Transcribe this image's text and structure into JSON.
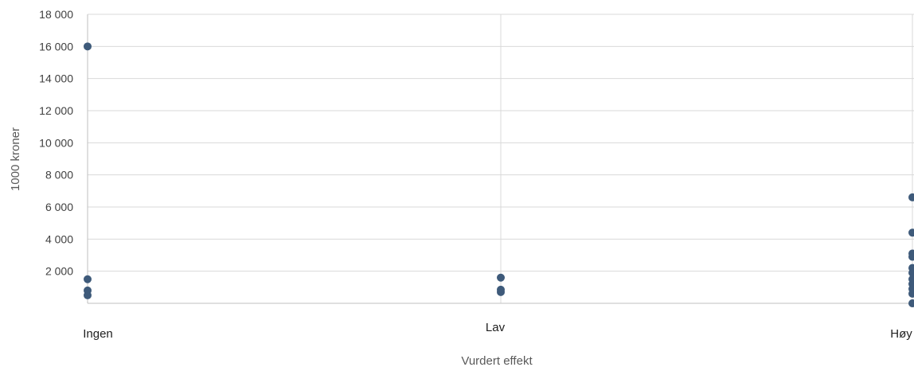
{
  "chart_data": {
    "type": "scatter",
    "title": "",
    "xlabel": "Vurdert effekt",
    "ylabel": "1000 kroner",
    "categories": [
      "Ingen",
      "Lav",
      "Høy"
    ],
    "y_tick_labels": [
      "18 000",
      "16 000",
      "14 000",
      "12 000",
      "10 000",
      "8 000",
      "6 000",
      "4 000",
      "2 000"
    ],
    "ylim": [
      0,
      18000
    ],
    "y_ticks": [
      2000,
      4000,
      6000,
      8000,
      10000,
      12000,
      14000,
      16000,
      18000
    ],
    "grid": true,
    "legend": "none",
    "marker_color": "#3E5A7A",
    "gridline_color": "#D9D9D9",
    "axis_color": "#BFBFBF",
    "series": [
      {
        "points": [
          {
            "x": "Ingen",
            "y": 16000
          },
          {
            "x": "Ingen",
            "y": 1500
          },
          {
            "x": "Ingen",
            "y": 800
          },
          {
            "x": "Ingen",
            "y": 500
          },
          {
            "x": "Lav",
            "y": 1600
          },
          {
            "x": "Lav",
            "y": 850
          },
          {
            "x": "Lav",
            "y": 700
          },
          {
            "x": "Høy",
            "y": 6600
          },
          {
            "x": "Høy",
            "y": 4400
          },
          {
            "x": "Høy",
            "y": 3100
          },
          {
            "x": "Høy",
            "y": 2900
          },
          {
            "x": "Høy",
            "y": 2200
          },
          {
            "x": "Høy",
            "y": 1900
          },
          {
            "x": "Høy",
            "y": 1500
          },
          {
            "x": "Høy",
            "y": 1200
          },
          {
            "x": "Høy",
            "y": 900
          },
          {
            "x": "Høy",
            "y": 600
          },
          {
            "x": "Høy",
            "y": 0
          }
        ]
      }
    ]
  }
}
